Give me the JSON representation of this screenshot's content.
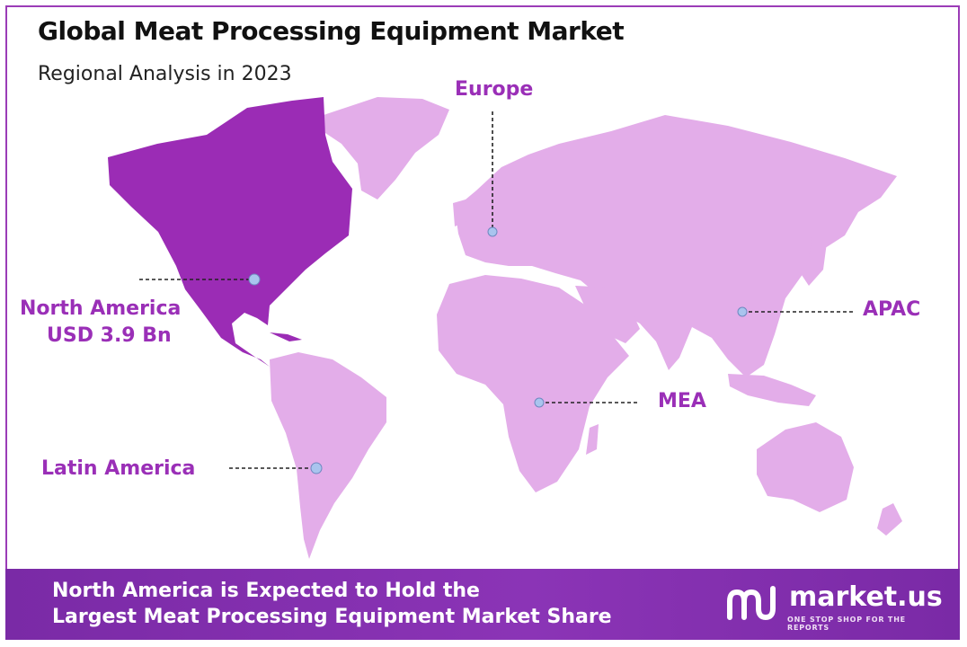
{
  "chart_data": {
    "type": "map",
    "title": "Global Meat Processing Equipment Market",
    "subtitle": "Regional Analysis in 2023",
    "highlight_region": "North America",
    "regions": [
      {
        "name": "North America",
        "value_label": "USD 3.9 Bn",
        "highlighted": true
      },
      {
        "name": "Europe",
        "highlighted": false
      },
      {
        "name": "APAC",
        "highlighted": false
      },
      {
        "name": "MEA",
        "highlighted": false
      },
      {
        "name": "Latin America",
        "highlighted": false
      }
    ]
  },
  "colors": {
    "highlight": "#9b2cb5",
    "land": "#e3ade9",
    "label": "#9a2fb7",
    "marker": "#a9c4ee",
    "footer": "#8b34b6"
  },
  "footer": {
    "line1": "North America is Expected to Hold the",
    "line2": "Largest Meat Processing Equipment Market Share"
  },
  "brand": {
    "name": "market.us",
    "tagline": "ONE STOP SHOP FOR THE REPORTS",
    "icon": "market-us-logo-icon"
  }
}
